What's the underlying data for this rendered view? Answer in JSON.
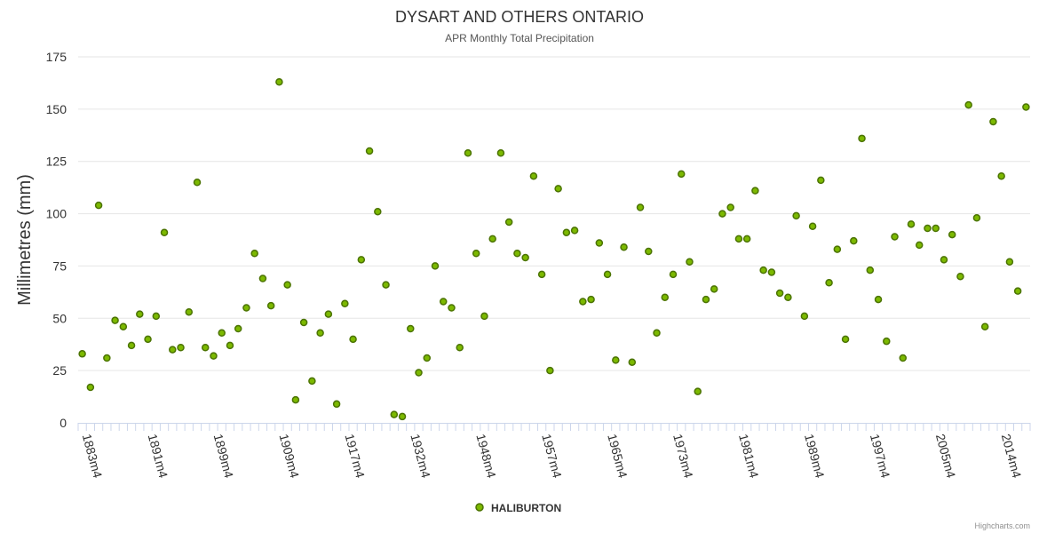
{
  "chart_data": {
    "type": "scatter",
    "title": "DYSART AND OTHERS ONTARIO",
    "subtitle": "APR Monthly Total Precipitation",
    "ylabel": "Millimetres (mm)",
    "xlabel": "",
    "ylim": [
      0,
      175
    ],
    "yticks": [
      0,
      25,
      50,
      75,
      100,
      125,
      150,
      175
    ],
    "grid": true,
    "legend_position": "bottom-center",
    "x_tick_labels": [
      {
        "index": 0,
        "label": "1883m4"
      },
      {
        "index": 8,
        "label": "1891m4"
      },
      {
        "index": 16,
        "label": "1899m4"
      },
      {
        "index": 24,
        "label": "1909m4"
      },
      {
        "index": 32,
        "label": "1917m4"
      },
      {
        "index": 40,
        "label": "1932m4"
      },
      {
        "index": 48,
        "label": "1948m4"
      },
      {
        "index": 56,
        "label": "1957m4"
      },
      {
        "index": 64,
        "label": "1965m4"
      },
      {
        "index": 72,
        "label": "1973m4"
      },
      {
        "index": 80,
        "label": "1981m4"
      },
      {
        "index": 88,
        "label": "1989m4"
      },
      {
        "index": 96,
        "label": "1997m4"
      },
      {
        "index": 104,
        "label": "2005m4"
      },
      {
        "index": 112,
        "label": "2014m4"
      }
    ],
    "series": [
      {
        "name": "HALIBURTON",
        "color": "#7cb900",
        "stroke": "#4b7300",
        "values": [
          33,
          17,
          104,
          31,
          49,
          46,
          37,
          52,
          40,
          51,
          91,
          35,
          36,
          53,
          115,
          36,
          32,
          43,
          37,
          45,
          55,
          81,
          69,
          56,
          163,
          66,
          11,
          48,
          20,
          43,
          52,
          9,
          57,
          40,
          78,
          130,
          101,
          66,
          4,
          3,
          45,
          24,
          31,
          75,
          58,
          55,
          36,
          129,
          81,
          51,
          88,
          129,
          96,
          81,
          79,
          118,
          71,
          25,
          112,
          91,
          92,
          58,
          59,
          86,
          71,
          30,
          84,
          29,
          103,
          82,
          43,
          60,
          71,
          119,
          77,
          15,
          59,
          64,
          100,
          103,
          88,
          88,
          111,
          73,
          72,
          62,
          60,
          99,
          51,
          94,
          116,
          67,
          83,
          40,
          87,
          136,
          73,
          59,
          39,
          89,
          31,
          95,
          85,
          93,
          93,
          78,
          90,
          70,
          152,
          98,
          46,
          144,
          118,
          77,
          63,
          151
        ]
      }
    ]
  },
  "credits": "Highcharts.com"
}
